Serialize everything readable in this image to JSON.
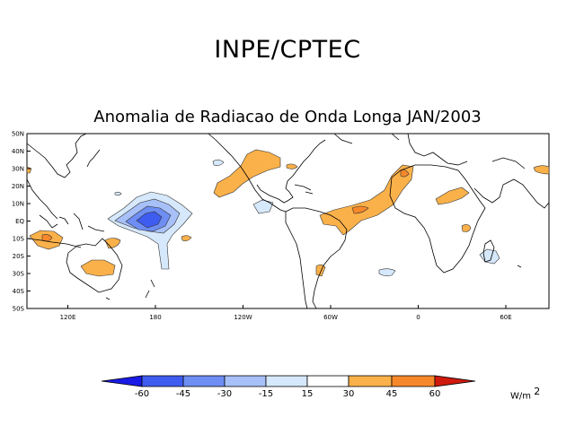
{
  "header": {
    "title": "INPE/CPTEC"
  },
  "map": {
    "title": "Anomalia de Radiacao de Onda Longa JAN/2003",
    "lat_labels": [
      "50N",
      "40N",
      "30N",
      "20N",
      "10N",
      "EQ",
      "10S",
      "20S",
      "30S",
      "40S",
      "50S"
    ],
    "lon_labels": [
      "120E",
      "180",
      "120W",
      "60W",
      "0",
      "60E"
    ]
  },
  "colorbar": {
    "levels": [
      "-60",
      "-45",
      "-30",
      "-15",
      "15",
      "30",
      "45",
      "60"
    ],
    "colors": [
      "#1a1ae6",
      "#3f5cf0",
      "#6e8ef4",
      "#a7c0f8",
      "#d6e8fb",
      "#ffffff",
      "#fdd08a",
      "#fbb14a",
      "#f6882a",
      "#ee5a1c",
      "#d01a0e"
    ],
    "units_base": "W/m",
    "units_exp": "2"
  }
}
